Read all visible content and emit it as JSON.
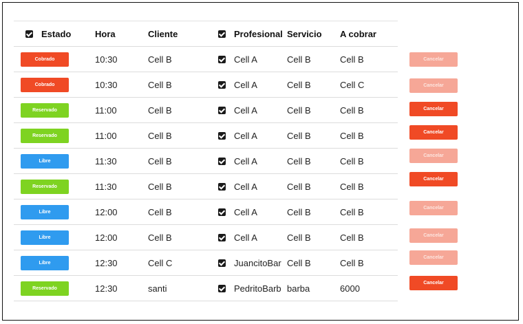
{
  "headers": {
    "estado": "Estado",
    "hora": "Hora",
    "cliente": "Cliente",
    "profesional": "Profesional",
    "servicio": "Servicio",
    "a_cobrar": "A cobrar"
  },
  "colors": {
    "cobrado": "#f04a25",
    "reservado": "#7ed321",
    "libre": "#2f9bef",
    "cancel_enabled": "#f04a25",
    "cancel_disabled": "#f6a797"
  },
  "rows": [
    {
      "estado": "Cobrado",
      "hora": "10:30",
      "cliente": "Cell B",
      "profesional": "Cell A",
      "servicio": "Cell B",
      "a_cobrar": "Cell B",
      "cancel_label": "Cancelar",
      "cancel_enabled": false
    },
    {
      "estado": "Cobrado",
      "hora": "10:30",
      "cliente": "Cell B",
      "profesional": "Cell A",
      "servicio": "Cell B",
      "a_cobrar": "Cell C",
      "cancel_label": "Cancelar",
      "cancel_enabled": false
    },
    {
      "estado": "Reservado",
      "hora": "11:00",
      "cliente": "Cell B",
      "profesional": "Cell A",
      "servicio": "Cell B",
      "a_cobrar": "Cell B",
      "cancel_label": "Cancelar",
      "cancel_enabled": true
    },
    {
      "estado": "Reservado",
      "hora": "11:00",
      "cliente": "Cell B",
      "profesional": "Cell A",
      "servicio": "Cell B",
      "a_cobrar": "Cell B",
      "cancel_label": "Cancelar",
      "cancel_enabled": true
    },
    {
      "estado": "Libre",
      "hora": "11:30",
      "cliente": "Cell B",
      "profesional": "Cell A",
      "servicio": "Cell B",
      "a_cobrar": "Cell B",
      "cancel_label": "Cancelar",
      "cancel_enabled": false
    },
    {
      "estado": "Reservado",
      "hora": "11:30",
      "cliente": "Cell B",
      "profesional": "Cell A",
      "servicio": "Cell B",
      "a_cobrar": "Cell B",
      "cancel_label": "Cancelar",
      "cancel_enabled": true
    },
    {
      "estado": "Libre",
      "hora": "12:00",
      "cliente": "Cell B",
      "profesional": "Cell A",
      "servicio": "Cell B",
      "a_cobrar": "Cell B",
      "cancel_label": "Cancelar",
      "cancel_enabled": false
    },
    {
      "estado": "Libre",
      "hora": "12:00",
      "cliente": "Cell B",
      "profesional": "Cell A",
      "servicio": "Cell B",
      "a_cobrar": "Cell B",
      "cancel_label": "Cancelar",
      "cancel_enabled": false
    },
    {
      "estado": "Libre",
      "hora": "12:30",
      "cliente": "Cell C",
      "profesional": "JuancitoBar",
      "servicio": "Cell B",
      "a_cobrar": "Cell B",
      "cancel_label": "Cancelar",
      "cancel_enabled": false
    },
    {
      "estado": "Reservado",
      "hora": "12:30",
      "cliente": "santi",
      "profesional": "PedritoBarb",
      "servicio": "barba",
      "a_cobrar": "6000",
      "cancel_label": "Cancelar",
      "cancel_enabled": true
    }
  ]
}
